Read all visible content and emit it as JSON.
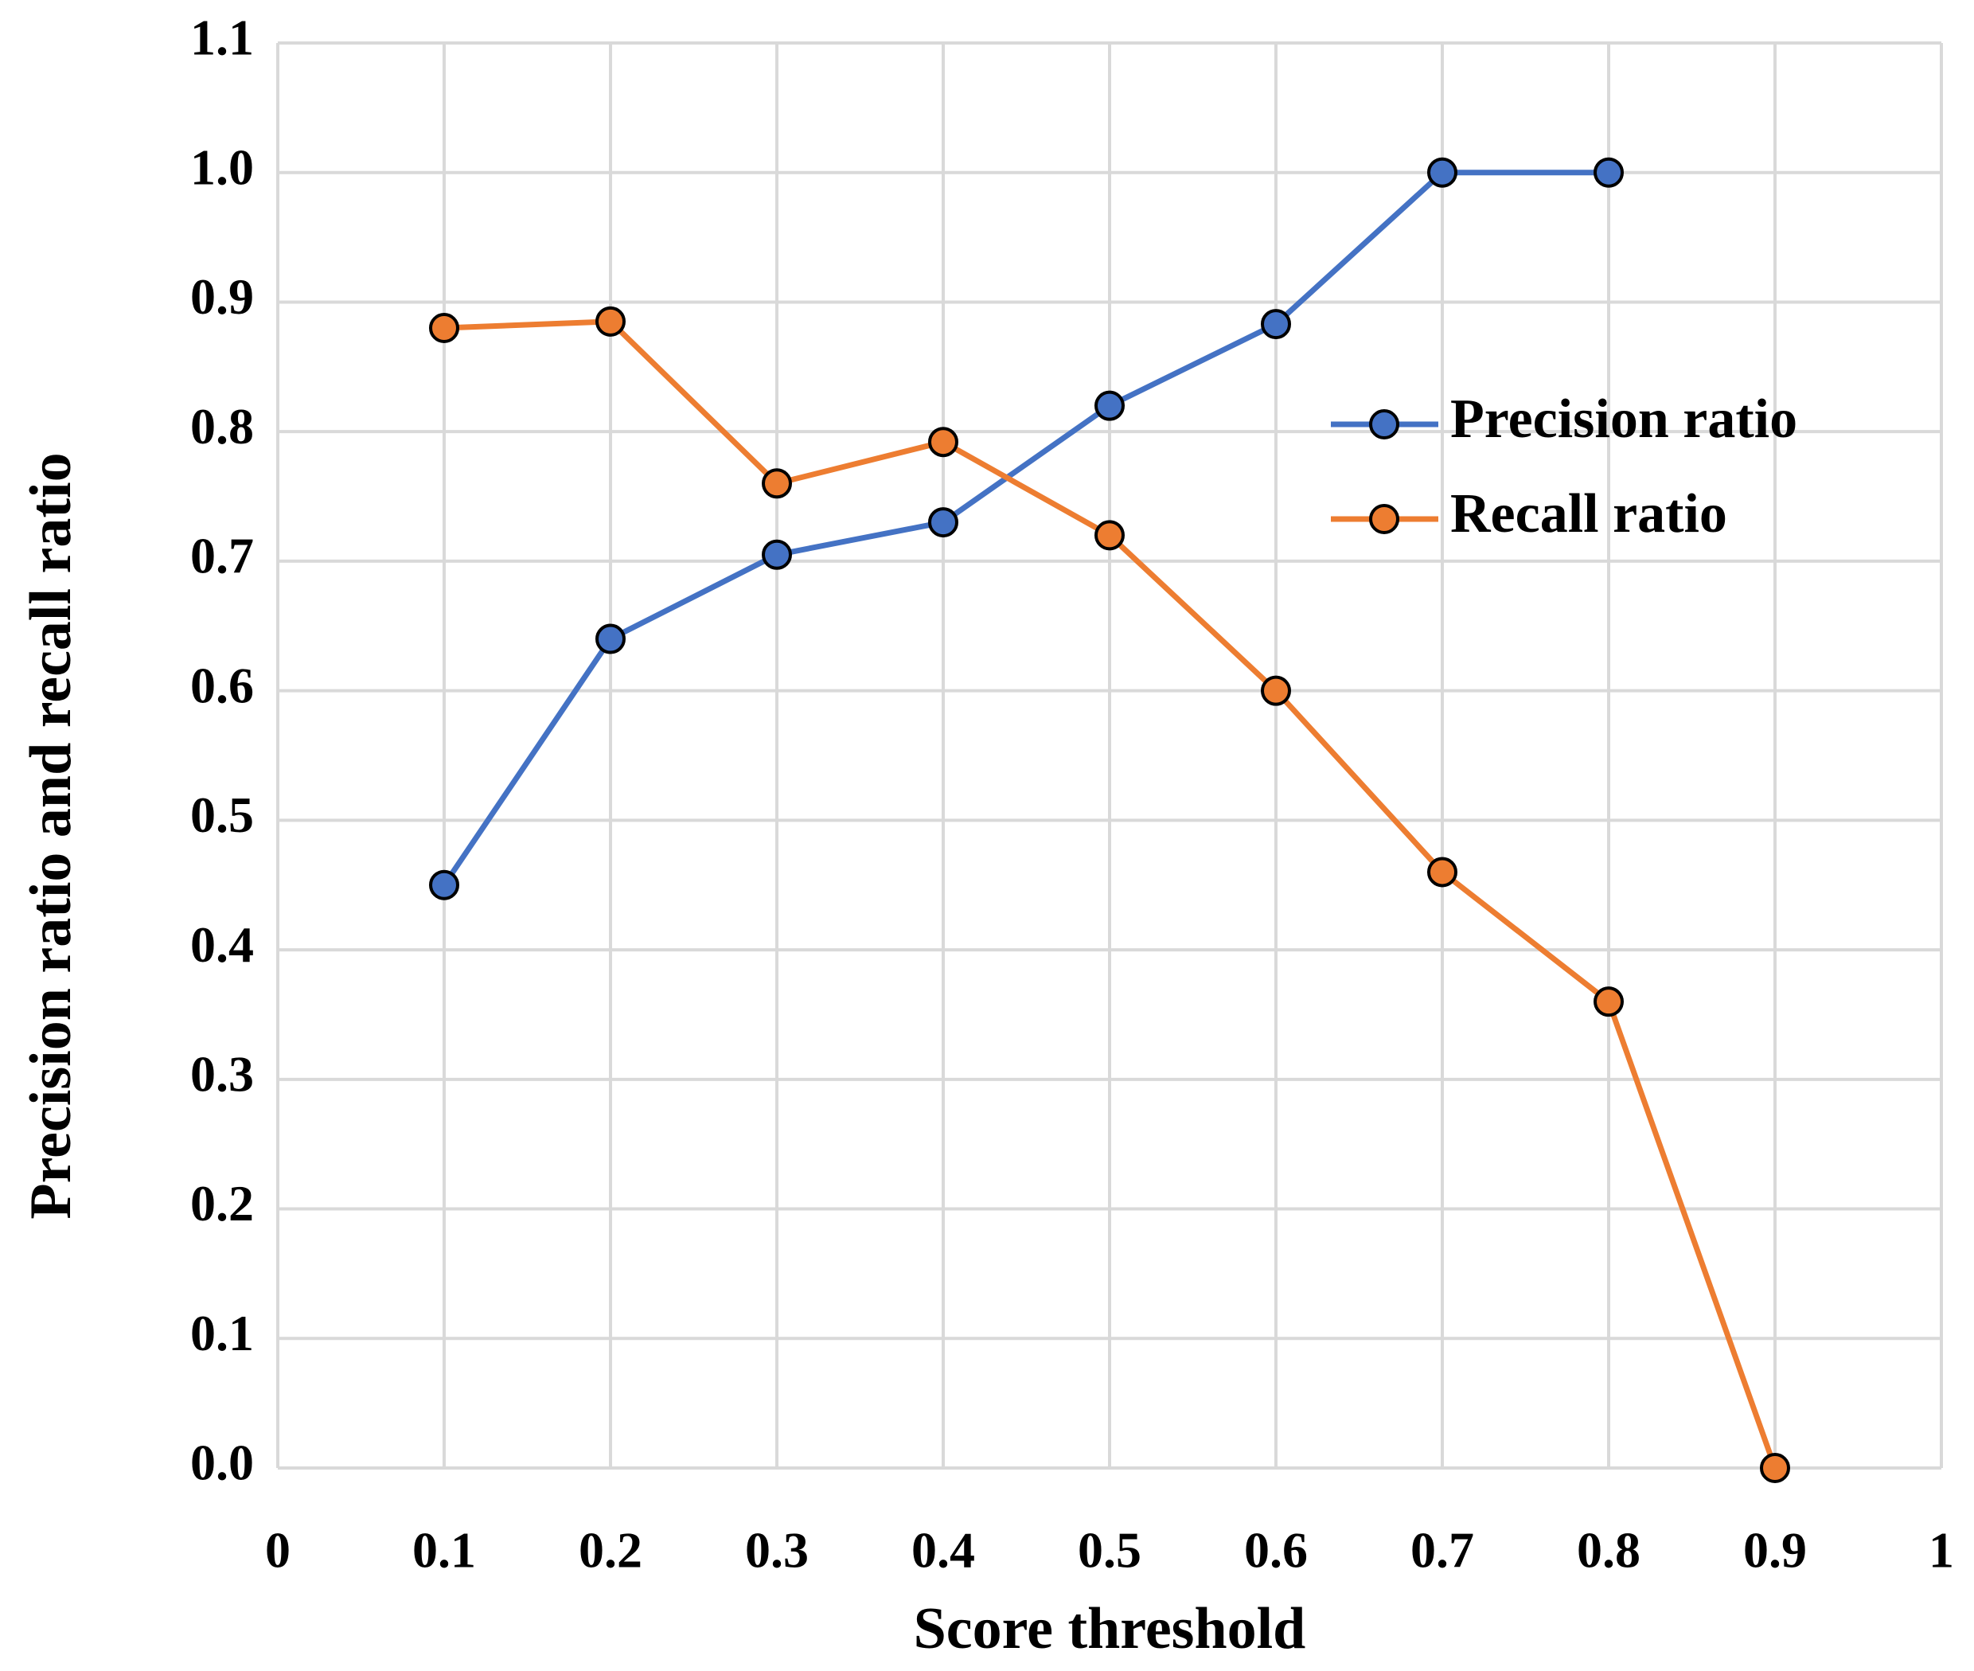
{
  "chart_data": {
    "type": "line",
    "x_label": "Score threshold",
    "y_label": "Precision ratio and recall ratio",
    "x": [
      0.1,
      0.2,
      0.3,
      0.4,
      0.5,
      0.6,
      0.7,
      0.8,
      0.9
    ],
    "series": [
      {
        "name": "Precision ratio",
        "color": "#4472c4",
        "values": [
          0.45,
          0.64,
          0.705,
          0.73,
          0.82,
          0.883,
          1.0,
          1.0,
          null
        ]
      },
      {
        "name": "Recall ratio",
        "color": "#ed7d31",
        "values": [
          0.88,
          0.885,
          0.76,
          0.792,
          0.72,
          0.6,
          0.46,
          0.36,
          0.0
        ]
      }
    ],
    "xlim": [
      0,
      1
    ],
    "xticks": [
      0,
      0.1,
      0.2,
      0.3,
      0.4,
      0.5,
      0.6,
      0.7,
      0.8,
      0.9,
      1
    ],
    "ylim": [
      0,
      1.1
    ],
    "yticks": [
      {
        "value": 0,
        "label": "0.0"
      },
      0.1,
      0.2,
      0.3,
      0.4,
      0.5,
      0.6,
      0.7,
      0.8,
      0.9,
      {
        "value": 1,
        "label": "1.0"
      },
      1.1
    ],
    "grid": true,
    "legend": "right"
  }
}
